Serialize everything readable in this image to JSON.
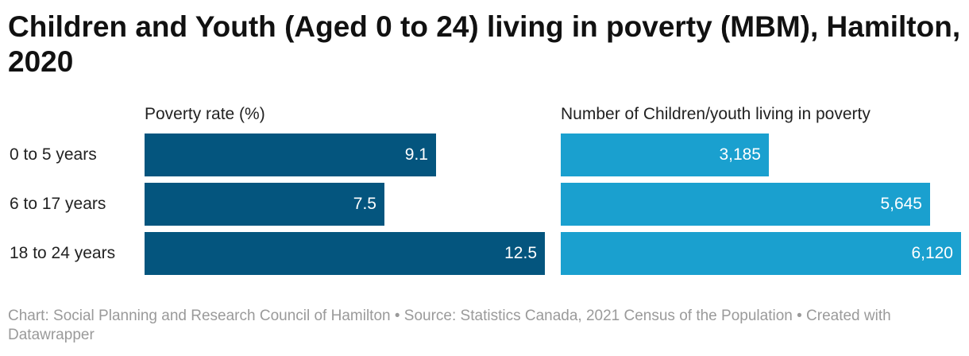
{
  "title": "Children and Youth (Aged 0 to 24) living in poverty (MBM), Hamilton, 2020",
  "footer": {
    "text": "Chart: Social Planning and Research Council of Hamilton • Source: Statistics Canada, 2021 Census of the Population • Created with Datawrapper"
  },
  "chart_data": [
    {
      "type": "bar",
      "orientation": "horizontal",
      "title": "Poverty rate (%)",
      "categories": [
        "0 to 5 years",
        "6 to 17 years",
        "18 to 24 years"
      ],
      "values": [
        9.1,
        7.5,
        12.5
      ],
      "value_labels": [
        "9.1",
        "7.5",
        "12.5"
      ],
      "xlim": [
        0,
        12.5
      ],
      "grid": false,
      "color": "#04557e"
    },
    {
      "type": "bar",
      "orientation": "horizontal",
      "title": "Number of Children/youth living in poverty",
      "categories": [
        "0 to 5 years",
        "6 to 17 years",
        "18 to 24 years"
      ],
      "values": [
        3185,
        5645,
        6120
      ],
      "value_labels": [
        "3,185",
        "5,645",
        "6,120"
      ],
      "xlim": [
        0,
        6120
      ],
      "grid": false,
      "color": "#1aa0cf"
    }
  ]
}
